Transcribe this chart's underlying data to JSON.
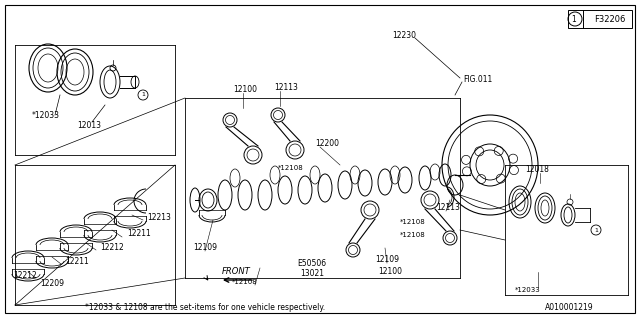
{
  "background_color": "#ffffff",
  "line_color": "#000000",
  "text_color": "#000000",
  "fig_ref": "F32206",
  "footer_text": "*12033 & 12108 are the set-items for one vehicle respectively.",
  "footer_code": "A010001219",
  "border": [
    5,
    5,
    630,
    308
  ]
}
